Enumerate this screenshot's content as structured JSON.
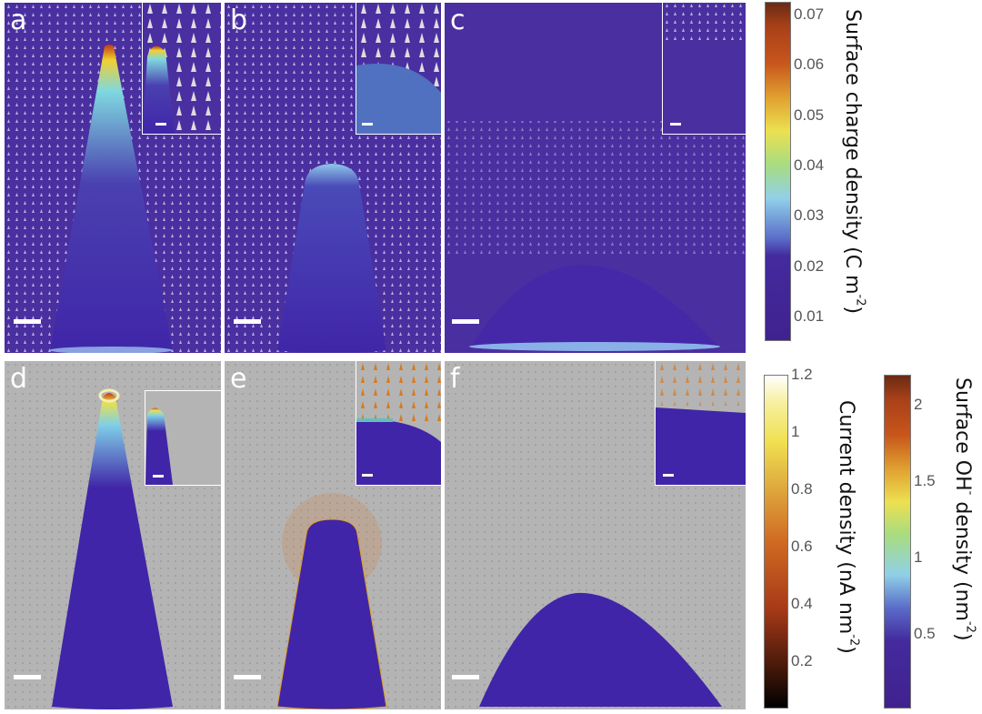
{
  "panels": [
    {
      "label": "a"
    },
    {
      "label": "b"
    },
    {
      "label": "c"
    },
    {
      "label": "d"
    },
    {
      "label": "e"
    },
    {
      "label": "f"
    }
  ],
  "colorbars": [
    {
      "label": "Surface charge density (C m",
      "unit_sup": "-2",
      "close": ")",
      "ticks": [
        "0.07",
        "0.06",
        "0.05",
        "0.04",
        "0.03",
        "0.02",
        "0.01"
      ],
      "tick_values": [
        0.07,
        0.06,
        0.05,
        0.04,
        0.03,
        0.02,
        0.01
      ],
      "range": [
        0.0055,
        0.0725
      ],
      "colormap": "turbo-like"
    },
    {
      "label": "Current density (nA nm",
      "unit_sup": "-2",
      "close": ")",
      "ticks": [
        "1.2",
        "1",
        "0.8",
        "0.6",
        "0.4",
        "0.2"
      ],
      "tick_values": [
        1.2,
        1,
        0.8,
        0.6,
        0.4,
        0.2
      ],
      "range": [
        0.04,
        1.2
      ],
      "colormap": "afmhot"
    },
    {
      "label": "Surface OH",
      "label_sup": "-",
      "label_rest": " density (nm",
      "unit_sup": "-2",
      "close": ")",
      "ticks": [
        "2",
        "1.5",
        "1",
        "0.5"
      ],
      "tick_values": [
        2,
        1.5,
        1,
        0.5
      ],
      "range": [
        0.02,
        2.2
      ],
      "colormap": "turbo-like"
    }
  ],
  "colors": {
    "field_top": "#4a2fa0",
    "field_bottom": "#b4b4b4",
    "body": "#4025a8"
  }
}
